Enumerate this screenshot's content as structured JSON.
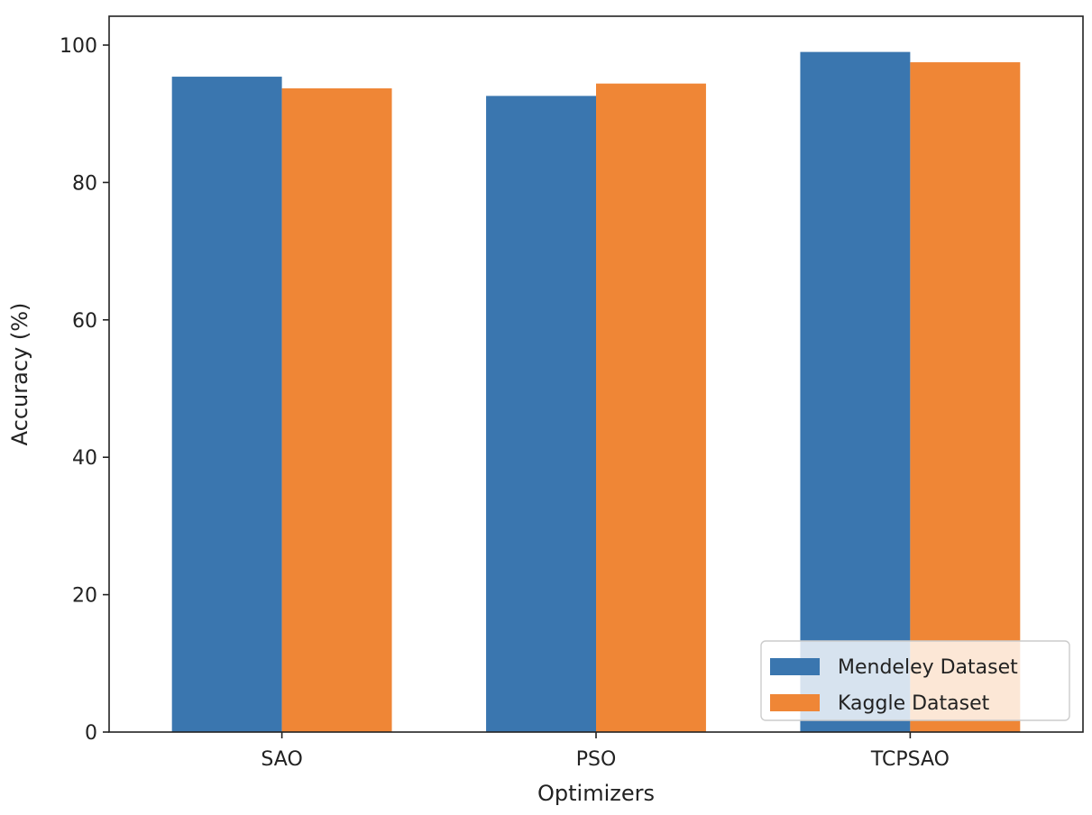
{
  "chart_data": {
    "type": "bar",
    "title": "",
    "xlabel": "Optimizers",
    "ylabel": "Accuracy (%)",
    "categories": [
      "SAO",
      "PSO",
      "TCPSAO"
    ],
    "series": [
      {
        "name": "Mendeley Dataset",
        "color": "#3a76af",
        "values": [
          95.4,
          92.6,
          99.0
        ]
      },
      {
        "name": "Kaggle Dataset",
        "color": "#ef8636",
        "values": [
          93.7,
          94.4,
          97.5
        ]
      }
    ],
    "ylim": [
      0,
      104.2
    ],
    "yticks": [
      0,
      20,
      40,
      60,
      80,
      100
    ],
    "grid": false,
    "legend_position": "bottom-right"
  }
}
